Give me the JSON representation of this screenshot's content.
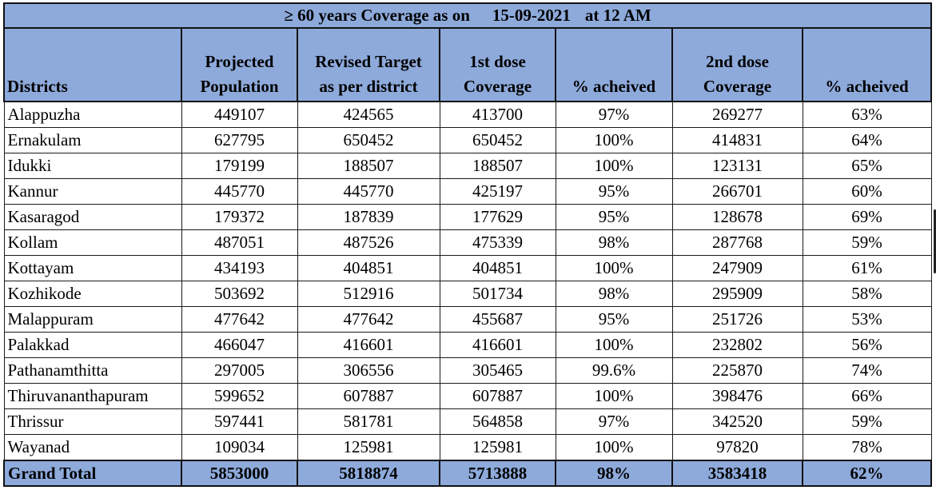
{
  "title": {
    "coverage_label": "≥ 60 years  Coverage as on",
    "date": "15-09-2021",
    "time": "at 12 AM"
  },
  "headers": {
    "districts": "Districts",
    "projected_l1": "Projected",
    "projected_l2": "Population",
    "revised_l1": "Revised Target",
    "revised_l2": "as per district",
    "dose1_l1": "1st dose",
    "dose1_l2": "Coverage",
    "pct1": "% acheived",
    "dose2_l1": "2nd  dose",
    "dose2_l2": "Coverage",
    "pct2": "% acheived"
  },
  "rows": [
    {
      "district": "Alappuzha",
      "projected": "449107",
      "revised": "424565",
      "dose1": "413700",
      "pct1": "97%",
      "dose2": "269277",
      "pct2": "63%"
    },
    {
      "district": "Ernakulam",
      "projected": "627795",
      "revised": "650452",
      "dose1": "650452",
      "pct1": "100%",
      "dose2": "414831",
      "pct2": "64%"
    },
    {
      "district": "Idukki",
      "projected": "179199",
      "revised": "188507",
      "dose1": "188507",
      "pct1": "100%",
      "dose2": "123131",
      "pct2": "65%"
    },
    {
      "district": "Kannur",
      "projected": "445770",
      "revised": "445770",
      "dose1": "425197",
      "pct1": "95%",
      "dose2": "266701",
      "pct2": "60%"
    },
    {
      "district": "Kasaragod",
      "projected": "179372",
      "revised": "187839",
      "dose1": "177629",
      "pct1": "95%",
      "dose2": "128678",
      "pct2": "69%"
    },
    {
      "district": "Kollam",
      "projected": "487051",
      "revised": "487526",
      "dose1": "475339",
      "pct1": "98%",
      "dose2": "287768",
      "pct2": "59%"
    },
    {
      "district": "Kottayam",
      "projected": "434193",
      "revised": "404851",
      "dose1": "404851",
      "pct1": "100%",
      "dose2": "247909",
      "pct2": "61%"
    },
    {
      "district": "Kozhikode",
      "projected": "503692",
      "revised": "512916",
      "dose1": "501734",
      "pct1": "98%",
      "dose2": "295909",
      "pct2": "58%"
    },
    {
      "district": "Malappuram",
      "projected": "477642",
      "revised": "477642",
      "dose1": "455687",
      "pct1": "95%",
      "dose2": "251726",
      "pct2": "53%"
    },
    {
      "district": "Palakkad",
      "projected": "466047",
      "revised": "416601",
      "dose1": "416601",
      "pct1": "100%",
      "dose2": "232802",
      "pct2": "56%"
    },
    {
      "district": "Pathanamthitta",
      "projected": "297005",
      "revised": "306556",
      "dose1": "305465",
      "pct1": "99.6%",
      "dose2": "225870",
      "pct2": "74%"
    },
    {
      "district": "Thiruvananthapuram",
      "projected": "599652",
      "revised": "607887",
      "dose1": "607887",
      "pct1": "100%",
      "dose2": "398476",
      "pct2": "66%"
    },
    {
      "district": "Thrissur",
      "projected": "597441",
      "revised": "581781",
      "dose1": "564858",
      "pct1": "97%",
      "dose2": "342520",
      "pct2": "59%"
    },
    {
      "district": "Wayanad",
      "projected": "109034",
      "revised": "125981",
      "dose1": "125981",
      "pct1": "100%",
      "dose2": "97820",
      "pct2": "78%"
    }
  ],
  "total": {
    "district": "Grand Total",
    "projected": "5853000",
    "revised": "5818874",
    "dose1": "5713888",
    "pct1": "98%",
    "dose2": "3583418",
    "pct2": "62%"
  },
  "colors": {
    "header_fill": "#8eaadb",
    "border": "#1a1a1a"
  }
}
